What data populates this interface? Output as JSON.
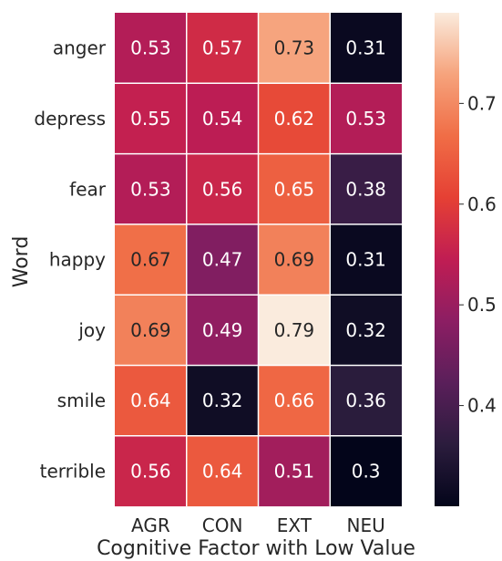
{
  "chart_data": {
    "type": "heatmap",
    "title": "",
    "xlabel": "Cognitive Factor with Low Value",
    "ylabel": "Word",
    "x_categories": [
      "AGR",
      "CON",
      "EXT",
      "NEU"
    ],
    "y_categories": [
      "anger",
      "depress",
      "fear",
      "happy",
      "joy",
      "smile",
      "terrible"
    ],
    "values": [
      [
        0.53,
        0.57,
        0.73,
        0.31
      ],
      [
        0.55,
        0.54,
        0.62,
        0.53
      ],
      [
        0.53,
        0.56,
        0.65,
        0.38
      ],
      [
        0.67,
        0.47,
        0.69,
        0.31
      ],
      [
        0.69,
        0.49,
        0.79,
        0.32
      ],
      [
        0.64,
        0.32,
        0.66,
        0.36
      ],
      [
        0.56,
        0.64,
        0.51,
        0.3
      ]
    ],
    "cell_labels": [
      [
        "0.53",
        "0.57",
        "0.73",
        "0.31"
      ],
      [
        "0.55",
        "0.54",
        "0.62",
        "0.53"
      ],
      [
        "0.53",
        "0.56",
        "0.65",
        "0.38"
      ],
      [
        "0.67",
        "0.47",
        "0.69",
        "0.31"
      ],
      [
        "0.69",
        "0.49",
        "0.79",
        "0.32"
      ],
      [
        "0.64",
        "0.32",
        "0.66",
        "0.36"
      ],
      [
        "0.56",
        "0.64",
        "0.51",
        "0.3"
      ]
    ],
    "colorbar": {
      "colormap": "rocket",
      "range": [
        0.3,
        0.79
      ],
      "ticks": [
        0.4,
        0.5,
        0.6,
        0.7
      ],
      "tick_labels": [
        "0.4",
        "0.5",
        "0.6",
        "0.7"
      ]
    }
  }
}
